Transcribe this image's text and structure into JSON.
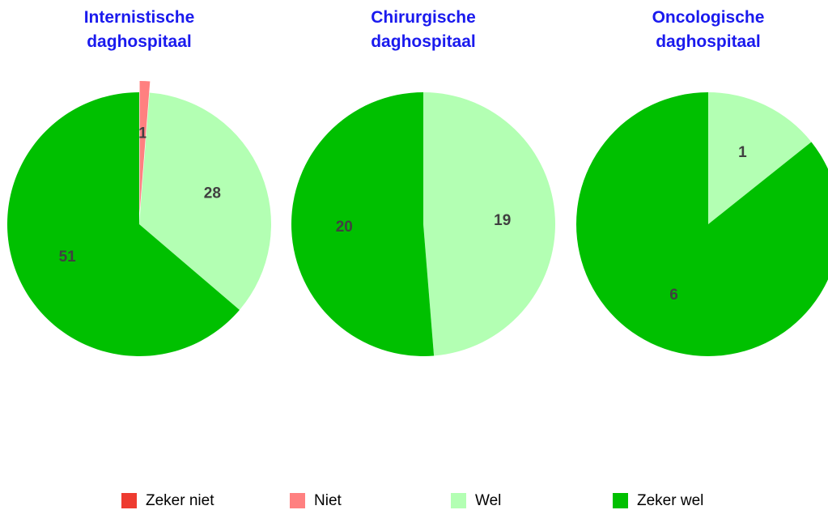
{
  "chart_data": [
    {
      "type": "pie",
      "title": "Internistische daghospitaal",
      "categories": [
        "Niet",
        "Wel",
        "Zeker wel"
      ],
      "values": [
        1,
        28,
        51
      ],
      "colors": [
        "#ff8080",
        "#b3ffb3",
        "#00c000"
      ],
      "explode": [
        true,
        false,
        false
      ]
    },
    {
      "type": "pie",
      "title": "Chirurgische daghospitaal",
      "categories": [
        "Wel",
        "Zeker wel"
      ],
      "values": [
        19,
        20
      ],
      "colors": [
        "#b3ffb3",
        "#00c000"
      ],
      "explode": [
        false,
        false
      ]
    },
    {
      "type": "pie",
      "title": "Oncologische daghospitaal",
      "categories": [
        "Wel",
        "Zeker wel"
      ],
      "values": [
        1,
        6
      ],
      "colors": [
        "#b3ffb3",
        "#00c000"
      ],
      "explode": [
        false,
        false
      ]
    }
  ],
  "legend": {
    "labels": [
      "Zeker niet",
      "Niet",
      "Wel",
      "Zeker wel"
    ],
    "colors": [
      "#ee3b30",
      "#ff8080",
      "#b3ffb3",
      "#00c000"
    ]
  }
}
